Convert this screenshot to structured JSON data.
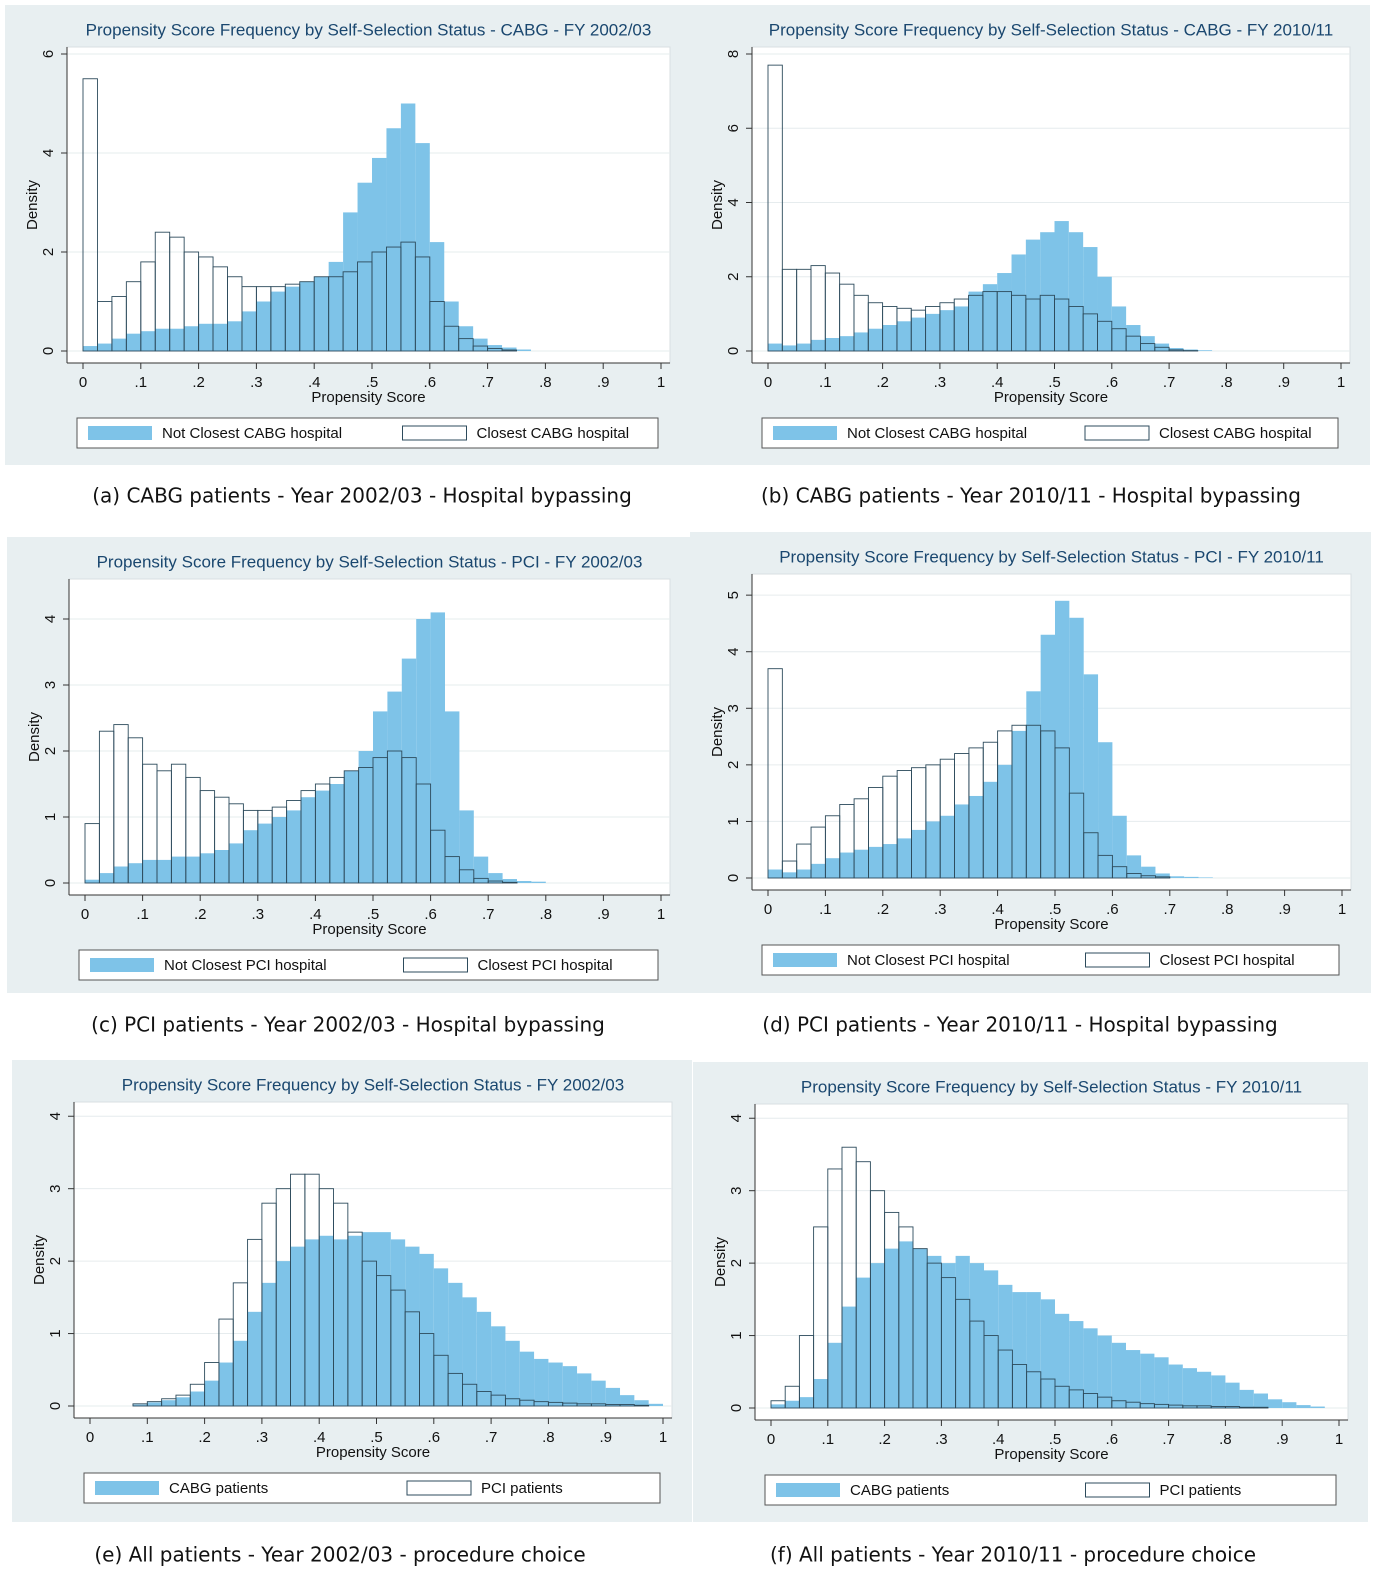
{
  "chart_data": [
    {
      "type": "histogram",
      "title": "Propensity Score Frequency by Self-Selection Status - CABG - FY 2002/03",
      "caption": "(a) CABG patients - Year 2002/03 - Hospital bypassing",
      "xlabel": "Propensity Score",
      "ylabel": "Density",
      "bins": [
        0,
        0.025,
        0.05,
        0.075,
        0.1,
        0.125,
        0.15,
        0.175,
        0.2,
        0.225,
        0.25,
        0.275,
        0.3,
        0.325,
        0.35,
        0.375,
        0.4,
        0.425,
        0.45,
        0.475,
        0.5,
        0.525,
        0.55,
        0.575,
        0.6,
        0.625,
        0.65,
        0.675,
        0.7,
        0.725,
        0.75,
        0.775,
        0.8
      ],
      "series": [
        {
          "name": "Not Closest CABG hospital",
          "color": "#7ec3e8",
          "style": "filled",
          "values": [
            0.1,
            0.15,
            0.25,
            0.35,
            0.4,
            0.45,
            0.45,
            0.5,
            0.55,
            0.55,
            0.6,
            0.8,
            1.0,
            1.2,
            1.3,
            1.4,
            1.5,
            1.8,
            2.8,
            3.4,
            3.9,
            4.5,
            5.0,
            4.2,
            2.2,
            1.0,
            0.5,
            0.25,
            0.12,
            0.07,
            0.03,
            0
          ]
        },
        {
          "name": "Closest CABG hospital",
          "color": "#2d4b5c",
          "style": "outline",
          "values": [
            5.5,
            1.0,
            1.1,
            1.4,
            1.8,
            2.4,
            2.3,
            2.0,
            1.9,
            1.7,
            1.5,
            1.3,
            1.3,
            1.3,
            1.35,
            1.4,
            1.5,
            1.5,
            1.6,
            1.8,
            2.0,
            2.1,
            2.2,
            1.9,
            1.0,
            0.5,
            0.25,
            0.1,
            0.05,
            0.02,
            0,
            0
          ]
        }
      ],
      "xlim": [
        0,
        1
      ],
      "xticks": [
        0,
        {
          "value": 0.1,
          "label": ".1"
        },
        {
          "value": 0.2,
          "label": ".2"
        },
        {
          "value": 0.3,
          "label": ".3"
        },
        {
          "value": 0.4,
          "label": ".4"
        },
        {
          "value": 0.5,
          "label": ".5"
        },
        {
          "value": 0.6,
          "label": ".6"
        },
        {
          "value": 0.7,
          "label": ".7"
        },
        {
          "value": 0.8,
          "label": ".8"
        },
        {
          "value": 0.9,
          "label": ".9"
        },
        1
      ],
      "ylim": [
        0,
        6
      ],
      "yticks": [
        0,
        2,
        4,
        6
      ],
      "grid": true,
      "legend": "bottom"
    },
    {
      "type": "histogram",
      "title": "Propensity Score Frequency by Self-Selection Status - CABG - FY 2010/11",
      "caption": "(b) CABG patients - Year 2010/11 - Hospital bypassing",
      "xlabel": "Propensity Score",
      "ylabel": "Density",
      "bins": [
        0,
        0.025,
        0.05,
        0.075,
        0.1,
        0.125,
        0.15,
        0.175,
        0.2,
        0.225,
        0.25,
        0.275,
        0.3,
        0.325,
        0.35,
        0.375,
        0.4,
        0.425,
        0.45,
        0.475,
        0.5,
        0.525,
        0.55,
        0.575,
        0.6,
        0.625,
        0.65,
        0.675,
        0.7,
        0.725,
        0.75,
        0.775,
        0.8
      ],
      "series": [
        {
          "name": "Not Closest CABG hospital",
          "color": "#7ec3e8",
          "style": "filled",
          "values": [
            0.2,
            0.15,
            0.2,
            0.3,
            0.35,
            0.4,
            0.5,
            0.6,
            0.7,
            0.8,
            0.9,
            1.0,
            1.1,
            1.2,
            1.6,
            1.8,
            2.1,
            2.6,
            3.0,
            3.2,
            3.5,
            3.2,
            2.8,
            2.0,
            1.2,
            0.7,
            0.4,
            0.2,
            0.08,
            0.04,
            0.02,
            0
          ]
        },
        {
          "name": "Closest CABG hospital",
          "color": "#2d4b5c",
          "style": "outline",
          "values": [
            7.7,
            2.2,
            2.2,
            2.3,
            2.1,
            1.8,
            1.5,
            1.3,
            1.2,
            1.15,
            1.1,
            1.2,
            1.3,
            1.4,
            1.5,
            1.6,
            1.6,
            1.5,
            1.4,
            1.5,
            1.4,
            1.2,
            1.0,
            0.8,
            0.6,
            0.4,
            0.2,
            0.1,
            0.03,
            0.01,
            0,
            0
          ]
        }
      ],
      "xlim": [
        0,
        1
      ],
      "xticks": [
        0,
        {
          "value": 0.1,
          "label": ".1"
        },
        {
          "value": 0.2,
          "label": ".2"
        },
        {
          "value": 0.3,
          "label": ".3"
        },
        {
          "value": 0.4,
          "label": ".4"
        },
        {
          "value": 0.5,
          "label": ".5"
        },
        {
          "value": 0.6,
          "label": ".6"
        },
        {
          "value": 0.7,
          "label": ".7"
        },
        {
          "value": 0.8,
          "label": ".8"
        },
        {
          "value": 0.9,
          "label": ".9"
        },
        1
      ],
      "ylim": [
        0,
        8
      ],
      "yticks": [
        0,
        2,
        4,
        6,
        8
      ],
      "grid": true,
      "legend": "bottom"
    },
    {
      "type": "histogram",
      "title": "Propensity Score Frequency by Self-Selection Status - PCI - FY 2002/03",
      "caption": "(c) PCI patients - Year 2002/03 - Hospital bypassing",
      "xlabel": "Propensity Score",
      "ylabel": "Density",
      "bins": [
        0,
        0.025,
        0.05,
        0.075,
        0.1,
        0.125,
        0.15,
        0.175,
        0.2,
        0.225,
        0.25,
        0.275,
        0.3,
        0.325,
        0.35,
        0.375,
        0.4,
        0.425,
        0.45,
        0.475,
        0.5,
        0.525,
        0.55,
        0.575,
        0.6,
        0.625,
        0.65,
        0.675,
        0.7,
        0.725,
        0.75,
        0.775,
        0.8
      ],
      "series": [
        {
          "name": "Not Closest PCI hospital",
          "color": "#7ec3e8",
          "style": "filled",
          "values": [
            0.05,
            0.15,
            0.25,
            0.3,
            0.35,
            0.35,
            0.4,
            0.4,
            0.45,
            0.5,
            0.6,
            0.8,
            0.9,
            1.0,
            1.1,
            1.3,
            1.4,
            1.5,
            1.7,
            2.0,
            2.6,
            2.9,
            3.4,
            4.0,
            4.1,
            2.6,
            1.1,
            0.4,
            0.15,
            0.06,
            0.03,
            0.02
          ]
        },
        {
          "name": "Closest PCI hospital",
          "color": "#2d4b5c",
          "style": "outline",
          "values": [
            0.9,
            2.3,
            2.4,
            2.2,
            1.8,
            1.7,
            1.8,
            1.6,
            1.4,
            1.3,
            1.2,
            1.1,
            1.1,
            1.15,
            1.25,
            1.4,
            1.5,
            1.6,
            1.7,
            1.75,
            1.9,
            2.0,
            1.9,
            1.5,
            0.8,
            0.4,
            0.2,
            0.07,
            0.03,
            0.01,
            0,
            0
          ]
        }
      ],
      "xlim": [
        0,
        1
      ],
      "xticks": [
        0,
        {
          "value": 0.1,
          "label": ".1"
        },
        {
          "value": 0.2,
          "label": ".2"
        },
        {
          "value": 0.3,
          "label": ".3"
        },
        {
          "value": 0.4,
          "label": ".4"
        },
        {
          "value": 0.5,
          "label": ".5"
        },
        {
          "value": 0.6,
          "label": ".6"
        },
        {
          "value": 0.7,
          "label": ".7"
        },
        {
          "value": 0.8,
          "label": ".8"
        },
        {
          "value": 0.9,
          "label": ".9"
        },
        1
      ],
      "ylim": [
        0,
        4.5
      ],
      "yticks": [
        0,
        1,
        2,
        3,
        4
      ],
      "grid": true,
      "legend": "bottom"
    },
    {
      "type": "histogram",
      "title": "Propensity Score Frequency by Self-Selection Status - PCI - FY 2010/11",
      "caption": "(d) PCI patients - Year 2010/11 - Hospital bypassing",
      "xlabel": "Propensity Score",
      "ylabel": "Density",
      "bins": [
        0,
        0.025,
        0.05,
        0.075,
        0.1,
        0.125,
        0.15,
        0.175,
        0.2,
        0.225,
        0.25,
        0.275,
        0.3,
        0.325,
        0.35,
        0.375,
        0.4,
        0.425,
        0.45,
        0.475,
        0.5,
        0.525,
        0.55,
        0.575,
        0.6,
        0.625,
        0.65,
        0.675,
        0.7,
        0.725,
        0.75,
        0.775,
        0.8
      ],
      "series": [
        {
          "name": "Not Closest PCI hospital",
          "color": "#7ec3e8",
          "style": "filled",
          "values": [
            0.15,
            0.1,
            0.15,
            0.25,
            0.35,
            0.45,
            0.5,
            0.55,
            0.6,
            0.7,
            0.85,
            1.0,
            1.1,
            1.3,
            1.45,
            1.7,
            2.0,
            2.6,
            3.3,
            4.3,
            4.9,
            4.6,
            3.6,
            2.4,
            1.1,
            0.4,
            0.2,
            0.08,
            0.03,
            0.02,
            0.01,
            0
          ]
        },
        {
          "name": "Closest PCI hospital",
          "color": "#2d4b5c",
          "style": "outline",
          "values": [
            3.7,
            0.3,
            0.6,
            0.9,
            1.1,
            1.3,
            1.4,
            1.6,
            1.8,
            1.9,
            1.95,
            2.0,
            2.1,
            2.2,
            2.3,
            2.4,
            2.6,
            2.7,
            2.7,
            2.6,
            2.3,
            1.5,
            0.8,
            0.4,
            0.2,
            0.08,
            0.04,
            0.02,
            0,
            0,
            0,
            0
          ]
        }
      ],
      "xlim": [
        0,
        1
      ],
      "xticks": [
        0,
        {
          "value": 0.1,
          "label": ".1"
        },
        {
          "value": 0.2,
          "label": ".2"
        },
        {
          "value": 0.3,
          "label": ".3"
        },
        {
          "value": 0.4,
          "label": ".4"
        },
        {
          "value": 0.5,
          "label": ".5"
        },
        {
          "value": 0.6,
          "label": ".6"
        },
        {
          "value": 0.7,
          "label": ".7"
        },
        {
          "value": 0.8,
          "label": ".8"
        },
        {
          "value": 0.9,
          "label": ".9"
        },
        1
      ],
      "ylim": [
        0,
        5.25
      ],
      "yticks": [
        0,
        1,
        2,
        3,
        4,
        5
      ],
      "grid": true,
      "legend": "bottom"
    },
    {
      "type": "histogram",
      "title": "Propensity Score Frequency by Self-Selection Status - FY 2002/03",
      "caption": "(e) All patients - Year 2002/03 - procedure choice",
      "xlabel": "Propensity Score",
      "ylabel": "Density",
      "bins": [
        0,
        0.025,
        0.05,
        0.075,
        0.1,
        0.125,
        0.15,
        0.175,
        0.2,
        0.225,
        0.25,
        0.275,
        0.3,
        0.325,
        0.35,
        0.375,
        0.4,
        0.425,
        0.45,
        0.475,
        0.5,
        0.525,
        0.55,
        0.575,
        0.6,
        0.625,
        0.65,
        0.675,
        0.7,
        0.725,
        0.75,
        0.775,
        0.8,
        0.825,
        0.85,
        0.875,
        0.9,
        0.925,
        0.95,
        0.975,
        1
      ],
      "series": [
        {
          "name": "CABG patients",
          "color": "#7ec3e8",
          "style": "filled",
          "values": [
            0,
            0,
            0,
            0.02,
            0.05,
            0.08,
            0.12,
            0.2,
            0.35,
            0.6,
            0.9,
            1.3,
            1.7,
            2.0,
            2.2,
            2.3,
            2.35,
            2.3,
            2.35,
            2.4,
            2.4,
            2.3,
            2.2,
            2.1,
            1.9,
            1.7,
            1.5,
            1.3,
            1.1,
            0.9,
            0.75,
            0.65,
            0.6,
            0.55,
            0.45,
            0.35,
            0.25,
            0.15,
            0.08,
            0.03
          ]
        },
        {
          "name": "PCI patients",
          "color": "#2d4b5c",
          "style": "outline",
          "values": [
            0,
            0,
            0,
            0.03,
            0.06,
            0.1,
            0.15,
            0.3,
            0.6,
            1.2,
            1.7,
            2.3,
            2.8,
            3.0,
            3.2,
            3.2,
            3.0,
            2.8,
            2.4,
            2.0,
            1.8,
            1.6,
            1.3,
            1.0,
            0.7,
            0.45,
            0.3,
            0.2,
            0.15,
            0.1,
            0.08,
            0.06,
            0.05,
            0.04,
            0.03,
            0.03,
            0.02,
            0.02,
            0.01,
            0
          ]
        }
      ],
      "xlim": [
        0,
        1
      ],
      "xticks": [
        0,
        {
          "value": 0.1,
          "label": ".1"
        },
        {
          "value": 0.2,
          "label": ".2"
        },
        {
          "value": 0.3,
          "label": ".3"
        },
        {
          "value": 0.4,
          "label": ".4"
        },
        {
          "value": 0.5,
          "label": ".5"
        },
        {
          "value": 0.6,
          "label": ".6"
        },
        {
          "value": 0.7,
          "label": ".7"
        },
        {
          "value": 0.8,
          "label": ".8"
        },
        {
          "value": 0.9,
          "label": ".9"
        },
        1
      ],
      "ylim": [
        0,
        4.1
      ],
      "yticks": [
        0,
        1,
        2,
        3,
        4
      ],
      "grid": true,
      "legend": "bottom"
    },
    {
      "type": "histogram",
      "title": "Propensity Score Frequency by Self-Selection Status - FY 2010/11",
      "caption": "(f) All patients - Year 2010/11 - procedure choice",
      "xlabel": "Propensity Score",
      "ylabel": "Density",
      "bins": [
        0,
        0.025,
        0.05,
        0.075,
        0.1,
        0.125,
        0.15,
        0.175,
        0.2,
        0.225,
        0.25,
        0.275,
        0.3,
        0.325,
        0.35,
        0.375,
        0.4,
        0.425,
        0.45,
        0.475,
        0.5,
        0.525,
        0.55,
        0.575,
        0.6,
        0.625,
        0.65,
        0.675,
        0.7,
        0.725,
        0.75,
        0.775,
        0.8,
        0.825,
        0.85,
        0.875,
        0.9,
        0.925,
        0.95,
        0.975,
        1
      ],
      "series": [
        {
          "name": "CABG patients",
          "color": "#7ec3e8",
          "style": "filled",
          "values": [
            0.05,
            0.1,
            0.15,
            0.4,
            0.9,
            1.4,
            1.8,
            2.0,
            2.2,
            2.3,
            2.2,
            2.1,
            2.0,
            2.1,
            2.0,
            1.9,
            1.7,
            1.6,
            1.6,
            1.5,
            1.3,
            1.2,
            1.1,
            1.0,
            0.9,
            0.8,
            0.75,
            0.7,
            0.6,
            0.55,
            0.5,
            0.45,
            0.35,
            0.25,
            0.2,
            0.12,
            0.08,
            0.04,
            0.02,
            0
          ]
        },
        {
          "name": "PCI patients",
          "color": "#2d4b5c",
          "style": "outline",
          "values": [
            0.1,
            0.3,
            1.0,
            2.5,
            3.3,
            3.6,
            3.4,
            3.0,
            2.7,
            2.5,
            2.2,
            2.0,
            1.8,
            1.5,
            1.2,
            1.0,
            0.8,
            0.6,
            0.5,
            0.4,
            0.3,
            0.25,
            0.2,
            0.15,
            0.1,
            0.08,
            0.06,
            0.05,
            0.04,
            0.03,
            0.03,
            0.02,
            0.02,
            0.01,
            0.01,
            0,
            0,
            0,
            0,
            0
          ]
        }
      ],
      "xlim": [
        0,
        1
      ],
      "xticks": [
        0,
        {
          "value": 0.1,
          "label": ".1"
        },
        {
          "value": 0.2,
          "label": ".2"
        },
        {
          "value": 0.3,
          "label": ".3"
        },
        {
          "value": 0.4,
          "label": ".4"
        },
        {
          "value": 0.5,
          "label": ".5"
        },
        {
          "value": 0.6,
          "label": ".6"
        },
        {
          "value": 0.7,
          "label": ".7"
        },
        {
          "value": 0.8,
          "label": ".8"
        },
        {
          "value": 0.9,
          "label": ".9"
        },
        1
      ],
      "ylim": [
        0,
        4.1
      ],
      "yticks": [
        0,
        1,
        2,
        3,
        4
      ],
      "grid": true,
      "legend": "bottom"
    }
  ]
}
